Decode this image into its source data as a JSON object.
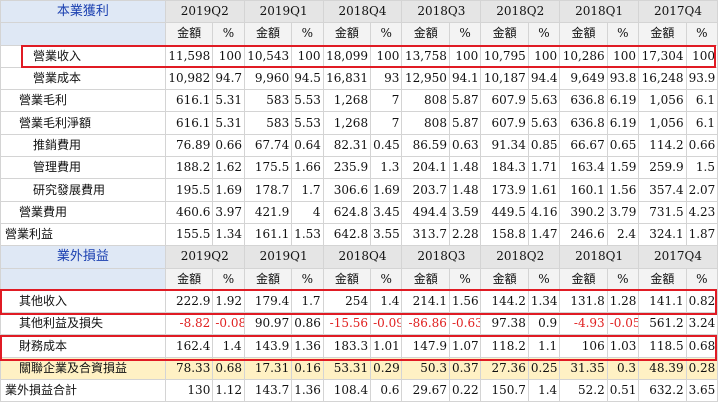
{
  "periods": [
    "2019Q2",
    "2019Q1",
    "2018Q4",
    "2018Q3",
    "2018Q2",
    "2018Q1",
    "2017Q4"
  ],
  "sub_headers": {
    "amount": "金額",
    "pct": "%"
  },
  "sections": [
    {
      "title": "本業獲利",
      "rows": [
        {
          "label": "營業收入",
          "indent": 2,
          "cells": [
            [
              "11,598",
              "100"
            ],
            [
              "10,543",
              "100"
            ],
            [
              "18,099",
              "100"
            ],
            [
              "13,758",
              "100"
            ],
            [
              "10,795",
              "100"
            ],
            [
              "10,286",
              "100"
            ],
            [
              "17,304",
              "100"
            ]
          ]
        },
        {
          "label": "營業成本",
          "indent": 2,
          "cells": [
            [
              "10,982",
              "94.7"
            ],
            [
              "9,960",
              "94.5"
            ],
            [
              "16,831",
              "93"
            ],
            [
              "12,950",
              "94.1"
            ],
            [
              "10,187",
              "94.4"
            ],
            [
              "9,649",
              "93.8"
            ],
            [
              "16,248",
              "93.9"
            ]
          ]
        },
        {
          "label": "營業毛利",
          "indent": 1,
          "cells": [
            [
              "616.1",
              "5.31"
            ],
            [
              "583",
              "5.53"
            ],
            [
              "1,268",
              "7"
            ],
            [
              "808",
              "5.87"
            ],
            [
              "607.9",
              "5.63"
            ],
            [
              "636.8",
              "6.19"
            ],
            [
              "1,056",
              "6.1"
            ]
          ]
        },
        {
          "label": "營業毛利淨額",
          "indent": 1,
          "cells": [
            [
              "616.1",
              "5.31"
            ],
            [
              "583",
              "5.53"
            ],
            [
              "1,268",
              "7"
            ],
            [
              "808",
              "5.87"
            ],
            [
              "607.9",
              "5.63"
            ],
            [
              "636.8",
              "6.19"
            ],
            [
              "1,056",
              "6.1"
            ]
          ]
        },
        {
          "label": "推銷費用",
          "indent": 2,
          "cells": [
            [
              "76.89",
              "0.66"
            ],
            [
              "67.74",
              "0.64"
            ],
            [
              "82.31",
              "0.45"
            ],
            [
              "86.59",
              "0.63"
            ],
            [
              "91.34",
              "0.85"
            ],
            [
              "66.67",
              "0.65"
            ],
            [
              "114.2",
              "0.66"
            ]
          ]
        },
        {
          "label": "管理費用",
          "indent": 2,
          "cells": [
            [
              "188.2",
              "1.62"
            ],
            [
              "175.5",
              "1.66"
            ],
            [
              "235.9",
              "1.3"
            ],
            [
              "204.1",
              "1.48"
            ],
            [
              "184.3",
              "1.71"
            ],
            [
              "163.4",
              "1.59"
            ],
            [
              "259.9",
              "1.5"
            ]
          ]
        },
        {
          "label": "研究發展費用",
          "indent": 2,
          "cells": [
            [
              "195.5",
              "1.69"
            ],
            [
              "178.7",
              "1.7"
            ],
            [
              "306.6",
              "1.69"
            ],
            [
              "203.7",
              "1.48"
            ],
            [
              "173.9",
              "1.61"
            ],
            [
              "160.1",
              "1.56"
            ],
            [
              "357.4",
              "2.07"
            ]
          ]
        },
        {
          "label": "營業費用",
          "indent": 1,
          "cells": [
            [
              "460.6",
              "3.97"
            ],
            [
              "421.9",
              "4"
            ],
            [
              "624.8",
              "3.45"
            ],
            [
              "494.4",
              "3.59"
            ],
            [
              "449.5",
              "4.16"
            ],
            [
              "390.2",
              "3.79"
            ],
            [
              "731.5",
              "4.23"
            ]
          ]
        },
        {
          "label": "營業利益",
          "indent": 0,
          "cells": [
            [
              "155.5",
              "1.34"
            ],
            [
              "161.1",
              "1.53"
            ],
            [
              "642.8",
              "3.55"
            ],
            [
              "313.7",
              "2.28"
            ],
            [
              "158.8",
              "1.47"
            ],
            [
              "246.6",
              "2.4"
            ],
            [
              "324.1",
              "1.87"
            ]
          ]
        }
      ]
    },
    {
      "title": "業外損益",
      "rows": [
        {
          "label": "其他收入",
          "indent": 1,
          "cells": [
            [
              "222.9",
              "1.92"
            ],
            [
              "179.4",
              "1.7"
            ],
            [
              "254",
              "1.4"
            ],
            [
              "214.1",
              "1.56"
            ],
            [
              "144.2",
              "1.34"
            ],
            [
              "131.8",
              "1.28"
            ],
            [
              "141.1",
              "0.82"
            ]
          ]
        },
        {
          "label": "其他利益及損失",
          "indent": 1,
          "cells": [
            [
              "-8.82",
              "-0.08"
            ],
            [
              "90.97",
              "0.86"
            ],
            [
              "-15.56",
              "-0.09"
            ],
            [
              "-86.86",
              "-0.63"
            ],
            [
              "97.38",
              "0.9"
            ],
            [
              "-4.93",
              "-0.05"
            ],
            [
              "561.2",
              "3.24"
            ]
          ]
        },
        {
          "label": "財務成本",
          "indent": 1,
          "cells": [
            [
              "162.4",
              "1.4"
            ],
            [
              "143.9",
              "1.36"
            ],
            [
              "183.3",
              "1.01"
            ],
            [
              "147.9",
              "1.07"
            ],
            [
              "118.2",
              "1.1"
            ],
            [
              "106",
              "1.03"
            ],
            [
              "118.5",
              "0.68"
            ]
          ]
        },
        {
          "label": "關聯企業及合資損益",
          "indent": 1,
          "highlight": true,
          "cells": [
            [
              "78.33",
              "0.68"
            ],
            [
              "17.31",
              "0.16"
            ],
            [
              "53.31",
              "0.29"
            ],
            [
              "50.3",
              "0.37"
            ],
            [
              "27.36",
              "0.25"
            ],
            [
              "31.35",
              "0.3"
            ],
            [
              "48.39",
              "0.28"
            ]
          ]
        },
        {
          "label": "業外損益合計",
          "indent": 0,
          "cells": [
            [
              "130",
              "1.12"
            ],
            [
              "143.7",
              "1.36"
            ],
            [
              "108.4",
              "0.6"
            ],
            [
              "29.67",
              "0.22"
            ],
            [
              "150.7",
              "1.4"
            ],
            [
              "52.2",
              "0.51"
            ],
            [
              "632.2",
              "3.65"
            ]
          ]
        }
      ]
    }
  ],
  "colors": {
    "negative": "#e02020",
    "section_title": "#1a3fb0",
    "highlight_row": "#fff1c4",
    "box": "#e01b24"
  }
}
